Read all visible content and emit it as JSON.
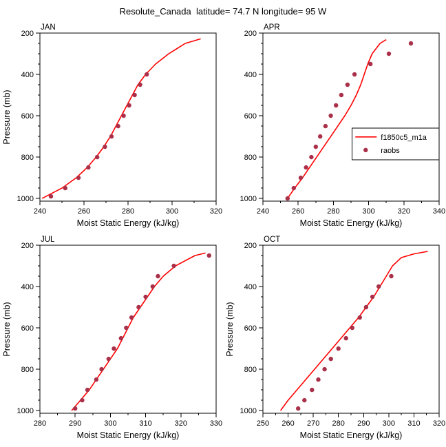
{
  "title": "Resolute_Canada  latitude= 74.7 N longitude= 95 W",
  "styles": {
    "line_color": "#ff0000",
    "dot_color": "#aa3049",
    "axis_color": "#000000",
    "background": "#ffffff"
  },
  "legend": {
    "entries": [
      {
        "label": "f1850c5_m1a",
        "type": "line"
      },
      {
        "label": "raobs",
        "type": "dot"
      }
    ]
  },
  "chart_data": {
    "type": "line",
    "title": "Resolute_Canada  latitude= 74.7 N longitude= 95 W",
    "xlabel": "Moist Static Energy (kJ/kg)",
    "ylabel": "Pressure (mb)",
    "ylim": [
      200,
      1013
    ],
    "y_inverted": true,
    "yticks": [
      200,
      400,
      600,
      800,
      1000
    ],
    "y_minor_step": 50,
    "panels": [
      {
        "id": "jan",
        "label": "JAN",
        "xlim": [
          240,
          320
        ],
        "xticks": [
          240,
          260,
          280,
          300,
          320
        ],
        "x_minor_step": 10,
        "show_ylabel": true,
        "legend": false,
        "series": [
          {
            "name": "f1850c5_m1a",
            "type": "line",
            "points": [
              [
                241,
                1000
              ],
              [
                250,
                950
              ],
              [
                256.5,
                900
              ],
              [
                261.5,
                850
              ],
              [
                265.5,
                800
              ],
              [
                269,
                750
              ],
              [
                272,
                700
              ],
              [
                274.5,
                650
              ],
              [
                277,
                600
              ],
              [
                279.5,
                550
              ],
              [
                282,
                500
              ],
              [
                284.5,
                450
              ],
              [
                288,
                400
              ],
              [
                292.5,
                350
              ],
              [
                298.5,
                300
              ],
              [
                306,
                250
              ],
              [
                313,
                228
              ]
            ]
          },
          {
            "name": "raobs",
            "type": "scatter",
            "points": [
              [
                245,
                990
              ],
              [
                251.5,
                950
              ],
              [
                257.5,
                900
              ],
              [
                262,
                850
              ],
              [
                266,
                800
              ],
              [
                269.5,
                750
              ],
              [
                272.5,
                700
              ],
              [
                275.5,
                650
              ],
              [
                278,
                600
              ],
              [
                280.5,
                550
              ],
              [
                283,
                500
              ],
              [
                285.5,
                450
              ],
              [
                288.5,
                400
              ]
            ]
          }
        ]
      },
      {
        "id": "apr",
        "label": "APR",
        "xlim": [
          240,
          340
        ],
        "xticks": [
          240,
          260,
          280,
          300,
          320,
          340
        ],
        "x_minor_step": 10,
        "show_ylabel": false,
        "legend": true,
        "series": [
          {
            "name": "f1850c5_m1a",
            "type": "line",
            "points": [
              [
                254,
                1000
              ],
              [
                258,
                950
              ],
              [
                262.5,
                900
              ],
              [
                266.5,
                850
              ],
              [
                270.5,
                800
              ],
              [
                274.5,
                750
              ],
              [
                278.5,
                700
              ],
              [
                282.5,
                650
              ],
              [
                286.5,
                600
              ],
              [
                290,
                550
              ],
              [
                293,
                500
              ],
              [
                295.5,
                450
              ],
              [
                297.5,
                400
              ],
              [
                299.5,
                350
              ],
              [
                302,
                300
              ],
              [
                306.5,
                250
              ],
              [
                310,
                232
              ]
            ]
          },
          {
            "name": "raobs",
            "type": "scatter",
            "points": [
              [
                254,
                1000
              ],
              [
                257.5,
                950
              ],
              [
                261.5,
                900
              ],
              [
                264.5,
                850
              ],
              [
                267.5,
                800
              ],
              [
                270,
                750
              ],
              [
                272.5,
                700
              ],
              [
                275.5,
                650
              ],
              [
                278.5,
                600
              ],
              [
                281.5,
                550
              ],
              [
                284.5,
                500
              ],
              [
                288,
                450
              ],
              [
                292,
                400
              ],
              [
                301,
                350
              ],
              [
                311.5,
                300
              ],
              [
                324,
                250
              ]
            ]
          }
        ]
      },
      {
        "id": "jul",
        "label": "JUL",
        "xlim": [
          280,
          330
        ],
        "xticks": [
          280,
          290,
          300,
          310,
          320,
          330
        ],
        "x_minor_step": 5,
        "show_ylabel": true,
        "legend": false,
        "series": [
          {
            "name": "f1850c5_m1a",
            "type": "line",
            "points": [
              [
                289,
                1000
              ],
              [
                291.5,
                950
              ],
              [
                294,
                900
              ],
              [
                296,
                850
              ],
              [
                298,
                800
              ],
              [
                300,
                750
              ],
              [
                302,
                700
              ],
              [
                303.5,
                650
              ],
              [
                305,
                600
              ],
              [
                306.5,
                550
              ],
              [
                308.5,
                500
              ],
              [
                310.5,
                450
              ],
              [
                312.5,
                400
              ],
              [
                315,
                350
              ],
              [
                318.5,
                300
              ],
              [
                324,
                250
              ],
              [
                327,
                238
              ]
            ]
          },
          {
            "name": "raobs",
            "type": "scatter",
            "points": [
              [
                290,
                990
              ],
              [
                292,
                950
              ],
              [
                293.5,
                900
              ],
              [
                296,
                850
              ],
              [
                297.5,
                800
              ],
              [
                299.5,
                750
              ],
              [
                301,
                700
              ],
              [
                303,
                650
              ],
              [
                304.5,
                600
              ],
              [
                306,
                550
              ],
              [
                308,
                500
              ],
              [
                310,
                450
              ],
              [
                312,
                400
              ],
              [
                313.5,
                350
              ],
              [
                318,
                300
              ],
              [
                328,
                250
              ]
            ]
          }
        ]
      },
      {
        "id": "oct",
        "label": "OCT",
        "xlim": [
          250,
          320
        ],
        "xticks": [
          250,
          260,
          270,
          280,
          290,
          300,
          310,
          320
        ],
        "x_minor_step": 5,
        "show_ylabel": true,
        "legend": false,
        "series": [
          {
            "name": "f1850c5_m1a",
            "type": "line",
            "points": [
              [
                257,
                1000
              ],
              [
                260,
                950
              ],
              [
                263.5,
                900
              ],
              [
                267,
                850
              ],
              [
                270.5,
                800
              ],
              [
                274,
                750
              ],
              [
                277.5,
                700
              ],
              [
                281,
                650
              ],
              [
                284.5,
                600
              ],
              [
                288,
                550
              ],
              [
                291,
                500
              ],
              [
                294,
                450
              ],
              [
                296.5,
                400
              ],
              [
                299,
                350
              ],
              [
                301.5,
                300
              ],
              [
                305,
                260
              ],
              [
                310,
                242
              ],
              [
                315.5,
                230
              ]
            ]
          },
          {
            "name": "raobs",
            "type": "scatter",
            "points": [
              [
                264,
                990
              ],
              [
                266.5,
                950
              ],
              [
                269.5,
                900
              ],
              [
                272,
                850
              ],
              [
                274.5,
                800
              ],
              [
                277,
                750
              ],
              [
                280,
                700
              ],
              [
                283,
                650
              ],
              [
                285.5,
                600
              ],
              [
                288.5,
                550
              ],
              [
                291,
                500
              ],
              [
                293.5,
                450
              ],
              [
                296,
                400
              ],
              [
                301,
                350
              ]
            ]
          }
        ]
      }
    ]
  }
}
